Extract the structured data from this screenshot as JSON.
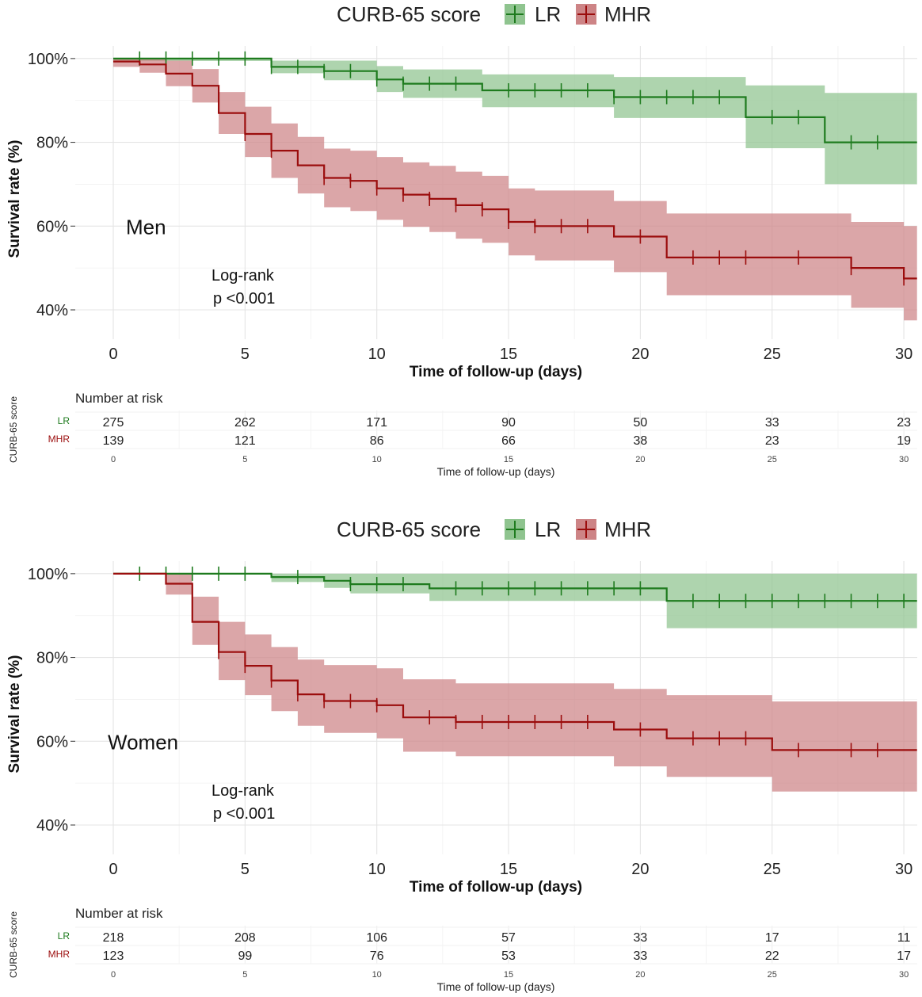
{
  "colors": {
    "LR": "#1e7b1e",
    "MHR": "#9b0d0d",
    "LR_band": "#8fc48f",
    "MHR_band": "#cd8486"
  },
  "chart_data": [
    {
      "type": "line",
      "subtype": "kaplan-meier",
      "panel_label": "Men",
      "legend": {
        "title": "CURB-65 score",
        "entries": [
          "LR",
          "MHR"
        ]
      },
      "xlabel": "Time of follow-up (days)",
      "ylabel": "Survival rate (%)",
      "xlim": [
        0,
        30.5
      ],
      "ylim": [
        33,
        103
      ],
      "xticks": [
        0,
        5,
        10,
        15,
        20,
        25,
        30
      ],
      "xtick_labels": [
        "0",
        "5",
        "10",
        "15",
        "20",
        "25",
        "30"
      ],
      "yticks": [
        40,
        60,
        80,
        100
      ],
      "ytick_labels": [
        "40%",
        "60%",
        "80%",
        "100%"
      ],
      "annotation": {
        "line1": "Log-rank",
        "line2": "p <0.001"
      },
      "series": [
        {
          "name": "LR",
          "steps": [
            [
              0,
              100
            ],
            [
              6,
              98
            ],
            [
              8,
              97
            ],
            [
              10,
              95
            ],
            [
              11,
              94
            ],
            [
              14,
              92.4
            ],
            [
              19,
              90.8
            ],
            [
              24,
              86
            ],
            [
              27,
              80
            ]
          ],
          "end": 30.5,
          "lower": [
            [
              0,
              99.4
            ],
            [
              6,
              96.5
            ],
            [
              8,
              94.8
            ],
            [
              10,
              92
            ],
            [
              11,
              90.6
            ],
            [
              14,
              88.4
            ],
            [
              19,
              85.8
            ],
            [
              24,
              78.6
            ],
            [
              27,
              70
            ]
          ],
          "upper": [
            [
              0,
              100
            ],
            [
              6,
              99.5
            ],
            [
              8,
              99.5
            ],
            [
              10,
              98.2
            ],
            [
              11,
              97.4
            ],
            [
              14,
              96.2
            ],
            [
              19,
              95.6
            ],
            [
              24,
              93.6
            ],
            [
              27,
              91.8
            ]
          ],
          "censor": [
            1,
            2,
            3,
            4,
            5,
            6,
            7,
            8,
            9,
            10,
            11,
            12,
            13,
            15,
            16,
            17,
            18,
            19,
            20,
            21,
            22,
            23,
            25,
            26,
            28,
            29
          ]
        },
        {
          "name": "MHR",
          "steps": [
            [
              0,
              99.3
            ],
            [
              1,
              98.6
            ],
            [
              2,
              96.4
            ],
            [
              3,
              93.5
            ],
            [
              4,
              87
            ],
            [
              5,
              82
            ],
            [
              6,
              78
            ],
            [
              7,
              74.5
            ],
            [
              8,
              71.5
            ],
            [
              9,
              70.8
            ],
            [
              10,
              69
            ],
            [
              11,
              67.5
            ],
            [
              12,
              66.5
            ],
            [
              13,
              65
            ],
            [
              14,
              64
            ],
            [
              15,
              61
            ],
            [
              16,
              60
            ],
            [
              19,
              57.5
            ],
            [
              21,
              52.5
            ],
            [
              28,
              50
            ],
            [
              30,
              47.5
            ]
          ],
          "end": 30.5,
          "lower": [
            [
              0,
              98
            ],
            [
              1,
              96.6
            ],
            [
              2,
              93.4
            ],
            [
              3,
              89.5
            ],
            [
              4,
              82
            ],
            [
              5,
              76.5
            ],
            [
              6,
              71.5
            ],
            [
              7,
              67.8
            ],
            [
              8,
              64.5
            ],
            [
              9,
              63.6
            ],
            [
              10,
              61.5
            ],
            [
              11,
              59.8
            ],
            [
              12,
              58.6
            ],
            [
              13,
              57
            ],
            [
              14,
              56
            ],
            [
              15,
              53
            ],
            [
              16,
              51.8
            ],
            [
              19,
              49
            ],
            [
              21,
              43.5
            ],
            [
              28,
              40.5
            ],
            [
              30,
              37.5
            ]
          ],
          "upper": [
            [
              0,
              100
            ],
            [
              1,
              100
            ],
            [
              2,
              99.5
            ],
            [
              3,
              97.5
            ],
            [
              4,
              92
            ],
            [
              5,
              88.5
            ],
            [
              6,
              84.5
            ],
            [
              7,
              81.3
            ],
            [
              8,
              78.5
            ],
            [
              9,
              78
            ],
            [
              10,
              76.5
            ],
            [
              11,
              75.2
            ],
            [
              12,
              74.4
            ],
            [
              13,
              73
            ],
            [
              14,
              72
            ],
            [
              15,
              69
            ],
            [
              16,
              68.5
            ],
            [
              19,
              66
            ],
            [
              21,
              63
            ],
            [
              28,
              61
            ],
            [
              30,
              60
            ]
          ],
          "censor": [
            5,
            6,
            8,
            9,
            10,
            11,
            12,
            13,
            14,
            15,
            16,
            17,
            18,
            20,
            22,
            23,
            24,
            26,
            28,
            30
          ]
        }
      ],
      "risk_table": {
        "header": "Number at risk",
        "ylabel": "CURB-65 score",
        "xlabel": "Time of follow-up (days)",
        "times": [
          "0",
          "5",
          "10",
          "15",
          "20",
          "25",
          "30"
        ],
        "rows": [
          {
            "label": "LR",
            "values": [
              "275",
              "262",
              "171",
              "90",
              "50",
              "33",
              "23"
            ]
          },
          {
            "label": "MHR",
            "values": [
              "139",
              "121",
              "86",
              "66",
              "38",
              "23",
              "19"
            ]
          }
        ]
      }
    },
    {
      "type": "line",
      "subtype": "kaplan-meier",
      "panel_label": "Women",
      "legend": {
        "title": "CURB-65 score",
        "entries": [
          "LR",
          "MHR"
        ]
      },
      "xlabel": "Time of follow-up (days)",
      "ylabel": "Survival rate (%)",
      "xlim": [
        0,
        30.5
      ],
      "ylim": [
        33,
        103
      ],
      "xticks": [
        0,
        5,
        10,
        15,
        20,
        25,
        30
      ],
      "xtick_labels": [
        "0",
        "5",
        "10",
        "15",
        "20",
        "25",
        "30"
      ],
      "yticks": [
        40,
        60,
        80,
        100
      ],
      "ytick_labels": [
        "40%",
        "60%",
        "80%",
        "100%"
      ],
      "annotation": {
        "line1": "Log-rank",
        "line2": "p <0.001"
      },
      "series": [
        {
          "name": "LR",
          "steps": [
            [
              0,
              100
            ],
            [
              6,
              99.2
            ],
            [
              8,
              98.3
            ],
            [
              9,
              97.5
            ],
            [
              12,
              96.5
            ],
            [
              21,
              93.5
            ]
          ],
          "end": 30.5,
          "lower": [
            [
              0,
              100
            ],
            [
              6,
              98
            ],
            [
              8,
              96.6
            ],
            [
              9,
              95.3
            ],
            [
              12,
              93.5
            ],
            [
              21,
              87
            ]
          ],
          "upper": [
            [
              0,
              100
            ],
            [
              6,
              100
            ],
            [
              8,
              100
            ],
            [
              9,
              100
            ],
            [
              12,
              100
            ],
            [
              21,
              100
            ]
          ],
          "censor": [
            1,
            2,
            3,
            4,
            5,
            7,
            9,
            10,
            11,
            13,
            14,
            15,
            16,
            17,
            18,
            19,
            20,
            22,
            23,
            24,
            25,
            26,
            27,
            28,
            29,
            30
          ]
        },
        {
          "name": "MHR",
          "steps": [
            [
              0,
              100
            ],
            [
              2,
              97.6
            ],
            [
              3,
              88.5
            ],
            [
              4,
              81.3
            ],
            [
              5,
              78
            ],
            [
              6,
              74.5
            ],
            [
              7,
              71.2
            ],
            [
              8,
              69.6
            ],
            [
              10,
              68.6
            ],
            [
              11,
              65.7
            ],
            [
              13,
              64.6
            ],
            [
              19,
              62.8
            ],
            [
              21,
              60.7
            ],
            [
              25,
              57.9
            ]
          ],
          "end": 30.5,
          "lower": [
            [
              0,
              100
            ],
            [
              2,
              95
            ],
            [
              3,
              83
            ],
            [
              4,
              74.6
            ],
            [
              5,
              71
            ],
            [
              6,
              67.2
            ],
            [
              7,
              63.7
            ],
            [
              8,
              62
            ],
            [
              10,
              60.7
            ],
            [
              11,
              57.5
            ],
            [
              13,
              56.4
            ],
            [
              19,
              54
            ],
            [
              21,
              51.5
            ],
            [
              25,
              48
            ]
          ],
          "upper": [
            [
              0,
              100
            ],
            [
              2,
              100
            ],
            [
              3,
              94.5
            ],
            [
              4,
              88.5
            ],
            [
              5,
              85.5
            ],
            [
              6,
              82.5
            ],
            [
              7,
              79.5
            ],
            [
              8,
              78.2
            ],
            [
              10,
              77.4
            ],
            [
              11,
              74.8
            ],
            [
              13,
              73.8
            ],
            [
              19,
              72.5
            ],
            [
              21,
              71
            ],
            [
              25,
              69.5
            ]
          ],
          "censor": [
            4,
            5,
            6,
            7,
            8,
            9,
            10,
            12,
            13,
            14,
            15,
            16,
            17,
            18,
            20,
            22,
            23,
            24,
            26,
            28,
            29
          ]
        }
      ],
      "risk_table": {
        "header": "Number at risk",
        "ylabel": "CURB-65 score",
        "xlabel": "Time of follow-up (days)",
        "times": [
          "0",
          "5",
          "10",
          "15",
          "20",
          "25",
          "30"
        ],
        "rows": [
          {
            "label": "LR",
            "values": [
              "218",
              "208",
              "106",
              "57",
              "33",
              "17",
              "11"
            ]
          },
          {
            "label": "MHR",
            "values": [
              "123",
              "99",
              "76",
              "53",
              "33",
              "22",
              "17"
            ]
          }
        ]
      }
    }
  ]
}
